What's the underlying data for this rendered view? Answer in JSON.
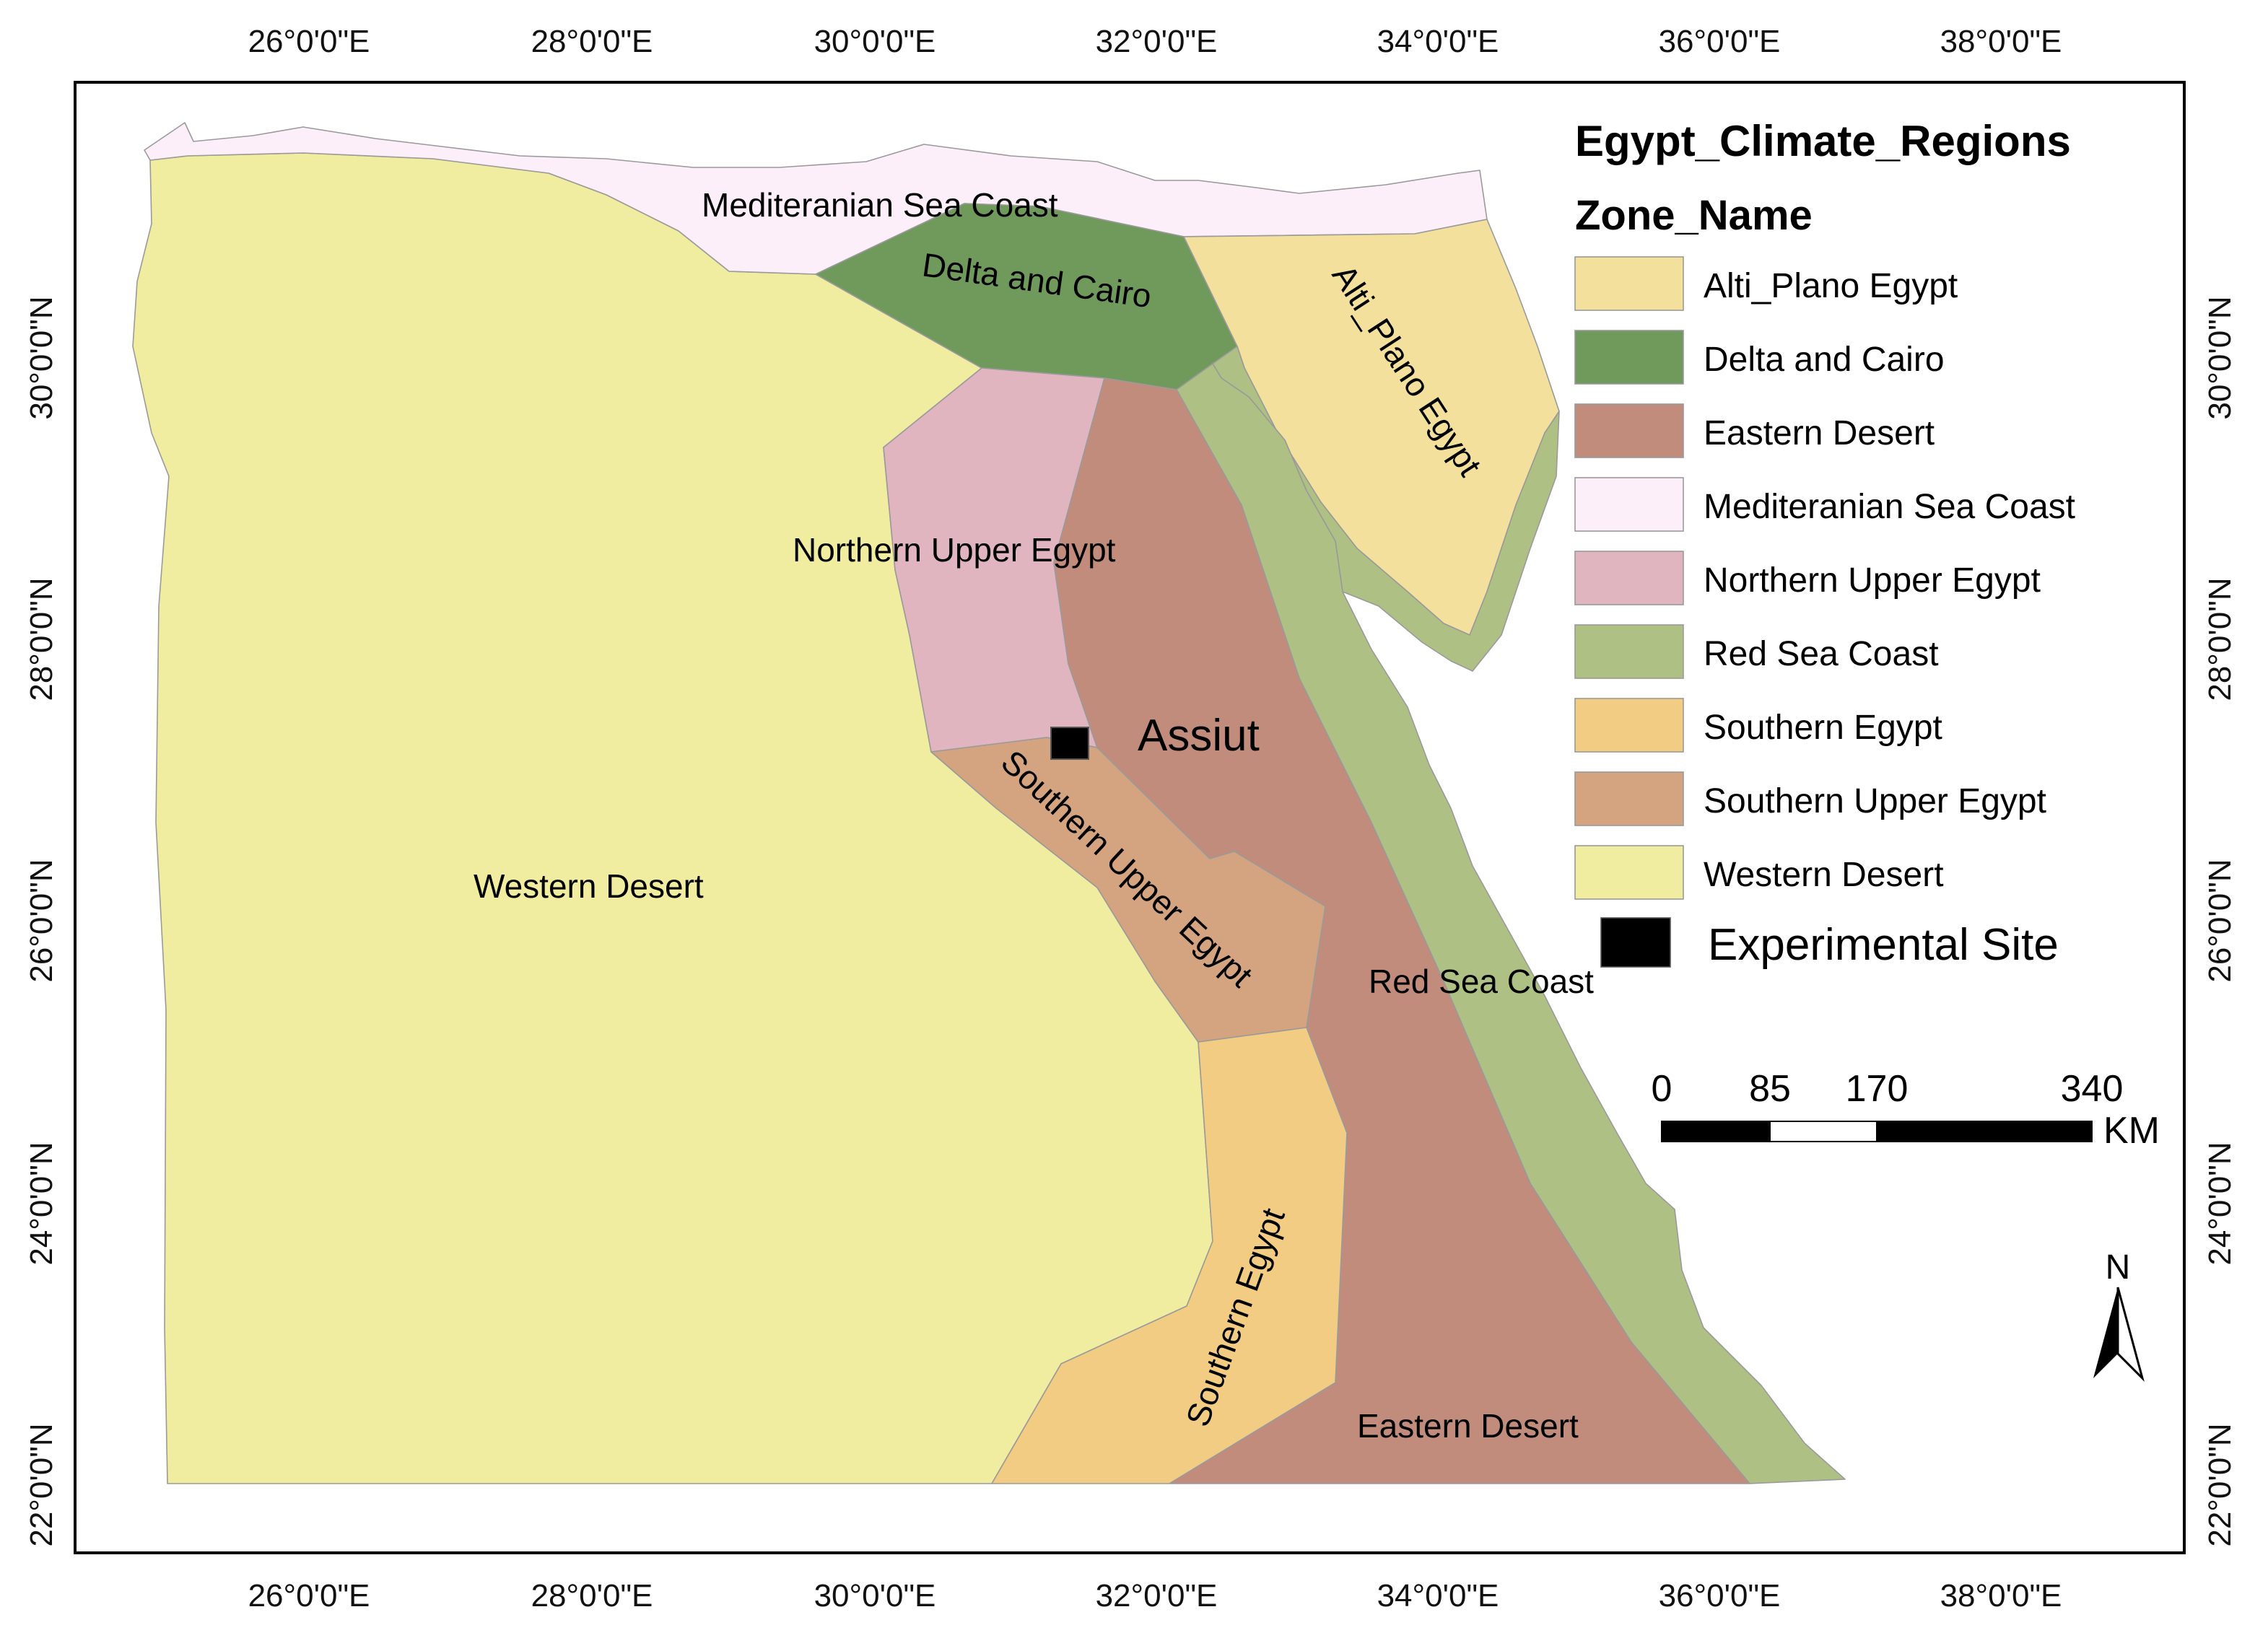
{
  "map": {
    "legend": {
      "title": "Egypt_Climate_Regions",
      "subtitle": "Zone_Name",
      "items": [
        {
          "label": "Alti_Plano Egypt",
          "color": "#F2E09C"
        },
        {
          "label": "Delta and Cairo",
          "color": "#6F9A5C"
        },
        {
          "label": "Eastern Desert",
          "color": "#C18C7C"
        },
        {
          "label": "Mediteranian Sea Coast",
          "color": "#FCEFFA"
        },
        {
          "label": "Northern Upper Egypt",
          "color": "#E1B5BF"
        },
        {
          "label": "Red Sea Coast",
          "color": "#AEC083"
        },
        {
          "label": "Southern Egypt",
          "color": "#F2CC83"
        },
        {
          "label": "Southern Upper Egypt",
          "color": "#D4A37F"
        },
        {
          "label": "Western Desert",
          "color": "#F0EDA0"
        }
      ],
      "experimental_site": {
        "label": "Experimental Site",
        "color": "#000000"
      }
    },
    "region_labels": {
      "mediterranean": "Mediteranian Sea Coast",
      "delta": "Delta and Cairo",
      "altiplano": "Alti_Plano Egypt",
      "northern_upper": "Northern Upper Egypt",
      "southern_upper": "Southern Upper Egypt",
      "western_desert": "Western Desert",
      "red_sea": "Red Sea Coast",
      "southern_egypt": "Southern Egypt",
      "eastern_desert": "Eastern Desert"
    },
    "site": {
      "name": "Assiut"
    },
    "longitude_ticks": [
      "26°0'0\"E",
      "28°0'0\"E",
      "30°0'0\"E",
      "32°0'0\"E",
      "34°0'0\"E",
      "36°0'0\"E",
      "38°0'0\"E"
    ],
    "latitude_ticks": [
      "30°0'0\"N",
      "28°0'0\"N",
      "26°0'0\"N",
      "24°0'0\"N",
      "22°0'0\"N"
    ],
    "scale_bar": {
      "labels": [
        "0",
        "85",
        "170",
        "340"
      ],
      "unit": "KM"
    },
    "north_arrow": {
      "label": "N",
      "icon": "north-arrow-icon"
    }
  }
}
